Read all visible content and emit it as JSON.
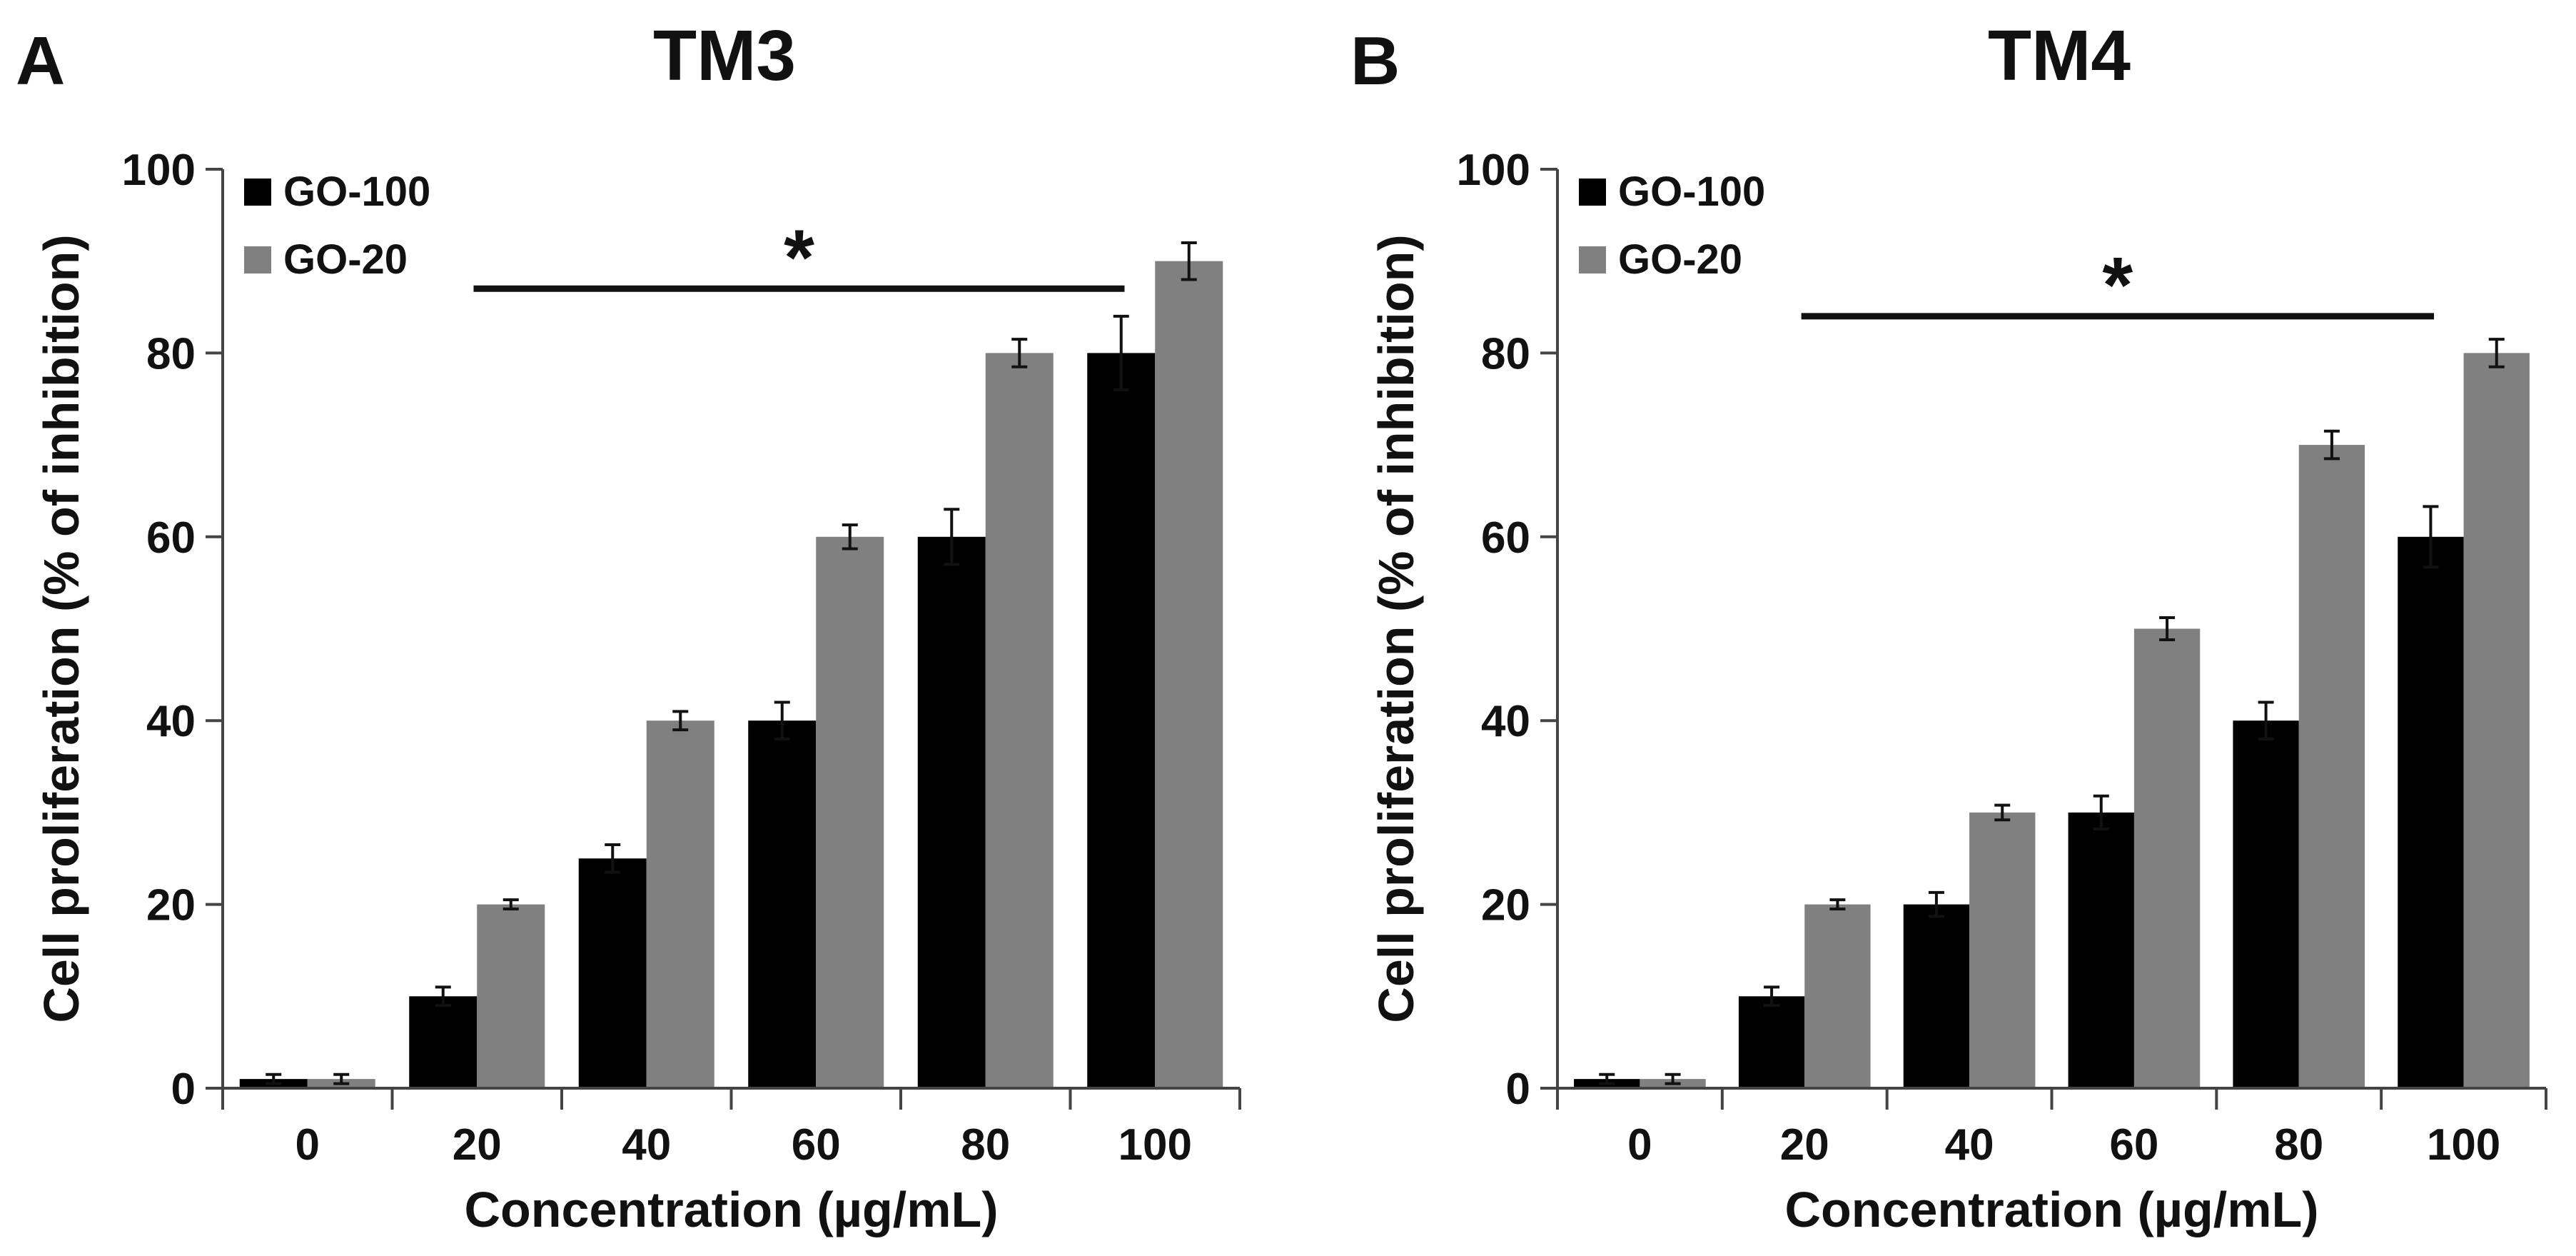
{
  "chart_data": [
    {
      "type": "bar",
      "panel_label": "A",
      "title": "TM3",
      "xlabel": "Concentration (µg/mL)",
      "ylabel": "Cell proliferation (% of inhibition)",
      "categories": [
        "0",
        "20",
        "40",
        "60",
        "80",
        "100"
      ],
      "ylim": [
        0,
        100
      ],
      "yticks": [
        0,
        20,
        40,
        60,
        80,
        100
      ],
      "grid": false,
      "legend_position": "top-left",
      "series": [
        {
          "name": "GO-100",
          "color": "#000000",
          "values": [
            1,
            10,
            25,
            40,
            60,
            80
          ],
          "errors": [
            0.5,
            1,
            1.5,
            2,
            3,
            4
          ]
        },
        {
          "name": "GO-20",
          "color": "#808080",
          "values": [
            1,
            20,
            40,
            60,
            80,
            90
          ],
          "errors": [
            0.5,
            0.5,
            1,
            1.3,
            1.5,
            2
          ]
        }
      ],
      "significance": {
        "label": "*",
        "from_category": "20",
        "to_category": "100",
        "level": 87
      }
    },
    {
      "type": "bar",
      "panel_label": "B",
      "title": "TM4",
      "xlabel": "Concentration (µg/mL)",
      "ylabel": "Cell proliferation (% of inhibition)",
      "categories": [
        "0",
        "20",
        "40",
        "60",
        "80",
        "100"
      ],
      "ylim": [
        0,
        100
      ],
      "yticks": [
        0,
        20,
        40,
        60,
        80,
        100
      ],
      "grid": false,
      "legend_position": "top-left",
      "series": [
        {
          "name": "GO-100",
          "color": "#000000",
          "values": [
            1,
            10,
            20,
            30,
            40,
            60
          ],
          "errors": [
            0.5,
            1,
            1.3,
            1.8,
            2,
            3.3
          ]
        },
        {
          "name": "GO-20",
          "color": "#808080",
          "values": [
            1,
            20,
            30,
            50,
            70,
            80
          ],
          "errors": [
            0.5,
            0.5,
            0.8,
            1.2,
            1.5,
            1.5
          ]
        }
      ],
      "significance": {
        "label": "*",
        "from_category": "20",
        "to_category": "100",
        "level": 84
      }
    }
  ]
}
